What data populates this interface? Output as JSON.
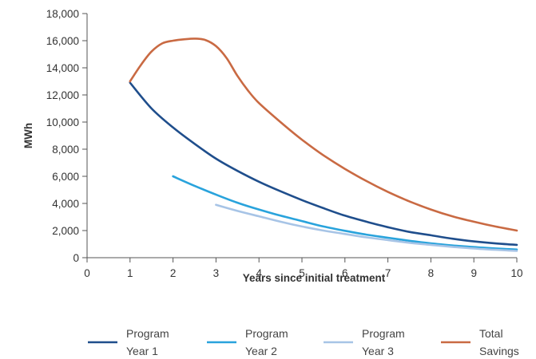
{
  "chart_data": {
    "type": "line",
    "title": "",
    "xlabel": "Years since initial treatment",
    "ylabel": "MWh",
    "xlim": [
      0,
      10
    ],
    "ylim": [
      0,
      18000
    ],
    "x_ticks": [
      "0",
      "1",
      "2",
      "3",
      "4",
      "5",
      "6",
      "7",
      "8",
      "9",
      "10"
    ],
    "y_ticks": [
      "0",
      "2,000",
      "4,000",
      "6,000",
      "8,000",
      "10,000",
      "12,000",
      "14,000",
      "16,000",
      "18,000"
    ],
    "grid": false,
    "legend_position": "bottom",
    "series": [
      {
        "name": "Program Year 1",
        "legend_lines": [
          "Program",
          "Year 1"
        ],
        "color": "#1f4e8c",
        "points": [
          [
            1,
            12900
          ],
          [
            1.5,
            11000
          ],
          [
            2,
            9600
          ],
          [
            2.5,
            8400
          ],
          [
            3,
            7300
          ],
          [
            3.5,
            6400
          ],
          [
            4,
            5600
          ],
          [
            4.5,
            4900
          ],
          [
            5,
            4250
          ],
          [
            5.5,
            3650
          ],
          [
            6,
            3100
          ],
          [
            6.5,
            2650
          ],
          [
            7,
            2250
          ],
          [
            7.5,
            1900
          ],
          [
            8,
            1650
          ],
          [
            8.5,
            1400
          ],
          [
            9,
            1200
          ],
          [
            9.5,
            1050
          ],
          [
            10,
            950
          ]
        ]
      },
      {
        "name": "Program Year 2",
        "legend_lines": [
          "Program",
          "Year 2"
        ],
        "color": "#29a3dc",
        "points": [
          [
            2,
            6000
          ],
          [
            2.5,
            5300
          ],
          [
            3,
            4650
          ],
          [
            3.5,
            4050
          ],
          [
            4,
            3550
          ],
          [
            4.5,
            3100
          ],
          [
            5,
            2700
          ],
          [
            5.5,
            2300
          ],
          [
            6,
            1980
          ],
          [
            6.5,
            1700
          ],
          [
            7,
            1470
          ],
          [
            7.5,
            1250
          ],
          [
            8,
            1050
          ],
          [
            8.5,
            900
          ],
          [
            9,
            780
          ],
          [
            9.5,
            680
          ],
          [
            10,
            600
          ]
        ]
      },
      {
        "name": "Program Year 3",
        "legend_lines": [
          "Program",
          "Year 3"
        ],
        "color": "#a7c4e6",
        "points": [
          [
            3,
            3900
          ],
          [
            3.5,
            3450
          ],
          [
            4,
            3050
          ],
          [
            4.5,
            2650
          ],
          [
            5,
            2300
          ],
          [
            5.5,
            2000
          ],
          [
            6,
            1750
          ],
          [
            6.5,
            1500
          ],
          [
            7,
            1300
          ],
          [
            7.5,
            1100
          ],
          [
            8,
            950
          ],
          [
            8.5,
            800
          ],
          [
            9,
            680
          ],
          [
            9.5,
            580
          ],
          [
            10,
            500
          ]
        ]
      },
      {
        "name": "Total Savings",
        "legend_lines": [
          "Total",
          "Savings"
        ],
        "color": "#c96a43",
        "points": [
          [
            1,
            13000
          ],
          [
            1.25,
            14200
          ],
          [
            1.5,
            15200
          ],
          [
            1.75,
            15800
          ],
          [
            2,
            16000
          ],
          [
            2.25,
            16100
          ],
          [
            2.5,
            16150
          ],
          [
            2.75,
            16050
          ],
          [
            3,
            15600
          ],
          [
            3.25,
            14700
          ],
          [
            3.5,
            13400
          ],
          [
            3.75,
            12300
          ],
          [
            4,
            11400
          ],
          [
            4.5,
            10000
          ],
          [
            5,
            8700
          ],
          [
            5.5,
            7550
          ],
          [
            6,
            6550
          ],
          [
            6.5,
            5650
          ],
          [
            7,
            4850
          ],
          [
            7.5,
            4150
          ],
          [
            8,
            3550
          ],
          [
            8.5,
            3050
          ],
          [
            9,
            2650
          ],
          [
            9.5,
            2300
          ],
          [
            10,
            2000
          ]
        ]
      }
    ]
  }
}
